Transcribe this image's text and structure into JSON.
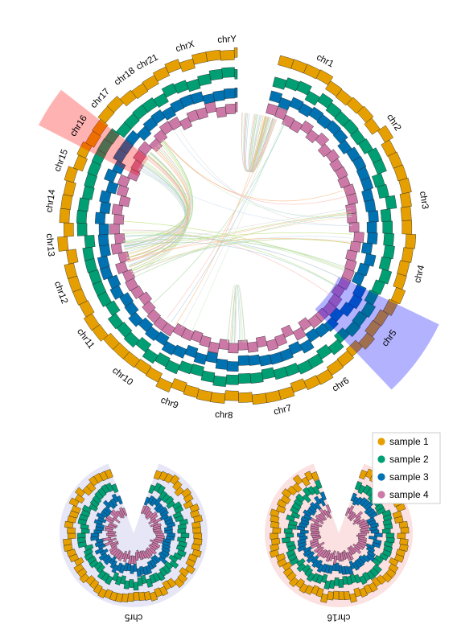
{
  "colors": {
    "sample1": "#E69F00",
    "sample2": "#009E73",
    "sample3": "#0072B2",
    "sample4": "#CC79A7",
    "highlight_chr5": "#0000FF",
    "highlight_chr16": "#FF0000",
    "zoom_bg_chr5": "#E6E6F7",
    "zoom_bg_chr16": "#FBE1E1"
  },
  "chart_data": [
    {
      "type": "circos",
      "chromosomes": [
        "chr1",
        "chr2",
        "chr3",
        "chr4",
        "chr5",
        "chr6",
        "chr7",
        "chr8",
        "chr9",
        "chr10",
        "chr11",
        "chr12",
        "chr13",
        "chr14",
        "chr15",
        "chr16",
        "chr17",
        "chr18",
        "chr21",
        "chrX",
        "chrY"
      ],
      "tracks": [
        "sample 1",
        "sample 2",
        "sample 3",
        "sample 4"
      ],
      "highlighted": [
        "chr5",
        "chr16"
      ],
      "links": "random inter-region links"
    },
    {
      "type": "circos-zoom",
      "chromosome": "chr5",
      "label": "chr5",
      "tracks": [
        "sample 1",
        "sample 2",
        "sample 3",
        "sample 4"
      ]
    },
    {
      "type": "circos-zoom",
      "chromosome": "chr16",
      "label": "chr16",
      "tracks": [
        "sample 1",
        "sample 2",
        "sample 3",
        "sample 4"
      ]
    }
  ],
  "legend": {
    "items": [
      {
        "label": "sample 1",
        "color": "#E69F00"
      },
      {
        "label": "sample 2",
        "color": "#009E73"
      },
      {
        "label": "sample 3",
        "color": "#0072B2"
      },
      {
        "label": "sample 4",
        "color": "#CC79A7"
      }
    ]
  }
}
